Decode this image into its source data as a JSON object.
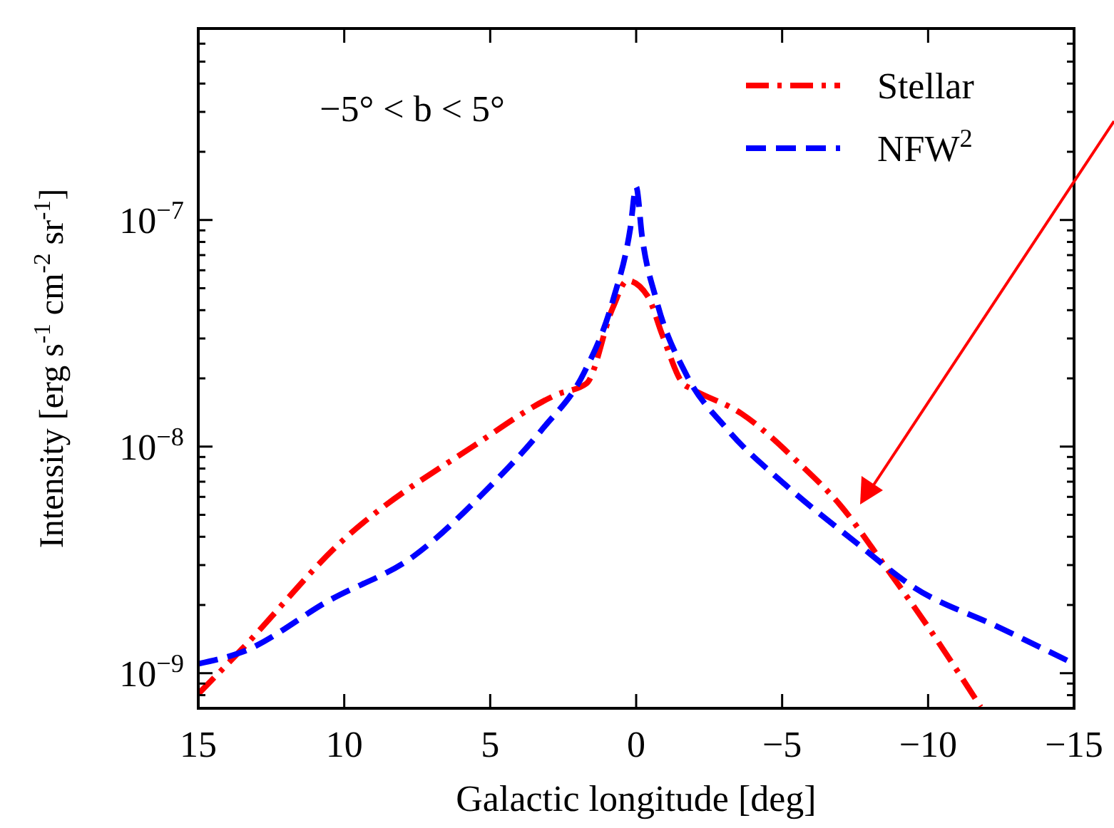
{
  "chart_data": {
    "type": "line",
    "xlabel": "Galactic longitude [deg]",
    "ylabel": "Intensity [erg s$^{-1}$ cm$^{-2}$ sr$^{-1}$]",
    "annotations": [
      "−5° < b < 5°"
    ],
    "log": "y",
    "legend": "top right",
    "grid": false,
    "xlim": [
      15,
      -15
    ],
    "xticks": [
      15,
      10,
      5,
      0,
      {
        "value": -5,
        "label": "−5"
      },
      {
        "value": -10,
        "label": "−10"
      },
      {
        "value": -15,
        "label": "−15"
      }
    ],
    "ylim": [
      7e-10,
      7e-07
    ],
    "yticks": [
      {
        "value": 8e-10,
        "label": null
      },
      {
        "value": 9e-10,
        "label": null
      },
      {
        "value": 1e-09,
        "label": "10$^{−9}$"
      },
      {
        "value": 2e-09,
        "label": null
      },
      {
        "value": 3e-09,
        "label": null
      },
      {
        "value": 4e-09,
        "label": null
      },
      {
        "value": 5e-09,
        "label": null
      },
      {
        "value": 6e-09,
        "label": null
      },
      {
        "value": 7e-09,
        "label": null
      },
      {
        "value": 8e-09,
        "label": null
      },
      {
        "value": 9e-09,
        "label": null
      },
      {
        "value": 1e-08,
        "label": "10$^{−8}$"
      },
      {
        "value": 2e-08,
        "label": null
      },
      {
        "value": 3e-08,
        "label": null
      },
      {
        "value": 4e-08,
        "label": null
      },
      {
        "value": 5e-08,
        "label": null
      },
      {
        "value": 6e-08,
        "label": null
      },
      {
        "value": 7e-08,
        "label": null
      },
      {
        "value": 8e-08,
        "label": null
      },
      {
        "value": 9e-08,
        "label": null
      },
      {
        "value": 1e-07,
        "label": "10$^{−7}$"
      },
      {
        "value": 2e-07,
        "label": null
      },
      {
        "value": 3e-07,
        "label": null
      },
      {
        "value": 4e-07,
        "label": null
      },
      {
        "value": 5e-07,
        "label": null
      },
      {
        "value": 6e-07,
        "label": null
      }
    ],
    "series": [
      {
        "name": "Stellar",
        "color": "#ff0000",
        "line_style": "dashdot",
        "x": [
          15,
          13.5,
          10.1,
          5.6,
          2.7,
          1.7,
          0.8,
          0.3,
          -0.4,
          -0.9,
          -1.6,
          -1.9,
          -3.6,
          -5.6,
          -7.0,
          -8.5,
          -10.0,
          -11.8
        ],
        "values": [
          8.1e-10,
          1.28e-09,
          3.8e-09,
          1e-08,
          1.7e-08,
          1.9e-08,
          4.1e-08,
          5.4e-08,
          4.6e-08,
          3.1e-08,
          1.9e-08,
          1.8e-08,
          1.4e-08,
          8.4e-09,
          5.5e-09,
          3e-09,
          1.6e-09,
          7.1e-10
        ]
      },
      {
        "name": "NFW$^{2}$",
        "color": "#0000ff",
        "line_style": "dashed",
        "x": [
          15,
          13.5,
          10.5,
          7.6,
          5.2,
          3.2,
          1.8,
          0.8,
          0.2,
          0,
          -0.2,
          -0.7,
          -1.7,
          -3.1,
          -5.1,
          -7.5,
          -9.5,
          -12.4,
          -15
        ],
        "values": [
          1.1e-09,
          1.24e-09,
          2.1e-09,
          3.3e-09,
          6.3e-09,
          1.2e-08,
          2.1e-08,
          4.4e-08,
          9.2e-08,
          1.4e-07,
          8.5e-08,
          4.4e-08,
          2.1e-08,
          1.2e-08,
          6.8e-09,
          3.8e-09,
          2.4e-09,
          1.6e-09,
          1.1e-09
        ]
      }
    ]
  }
}
